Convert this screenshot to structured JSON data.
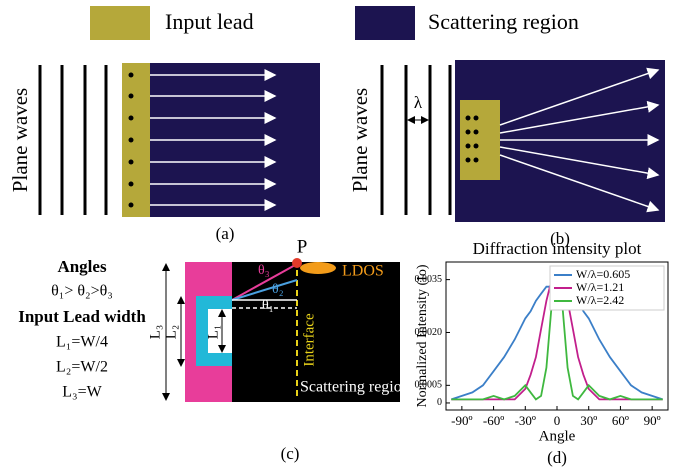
{
  "legend": {
    "input_lead": "Input lead",
    "scattering_region": "Scattering region"
  },
  "panel_a": {
    "label": "Plane waves",
    "caption": "(a)"
  },
  "panel_b": {
    "label": "Plane waves",
    "wavelength": "λ",
    "caption": "(b)"
  },
  "panel_c": {
    "angles_title": "Angles",
    "angles_relation": "θ₁> θ₂>θ₃",
    "width_title": "Input Lead width",
    "widths": [
      "L₁=W/4",
      "L₂=W/2",
      "L₃=W"
    ],
    "point": "P",
    "ldos": "LDOS",
    "angle_labels": [
      "θ₁",
      "θ₂",
      "θ₃"
    ],
    "length_labels": [
      "L₁",
      "L₂",
      "L₃"
    ],
    "interface": "Interface",
    "region": "Scattering region",
    "caption": "(c)"
  },
  "chart_data": {
    "type": "line",
    "title": "Diffraction intensity plot",
    "x_label": "Angle",
    "y_label": "Normalized Intensity (Io)",
    "caption": "(d)",
    "x": [
      -100,
      -90,
      -80,
      -70,
      -60,
      -50,
      -40,
      -30,
      -25,
      -20,
      -15,
      -10,
      -5,
      0,
      5,
      10,
      15,
      20,
      25,
      30,
      40,
      50,
      60,
      70,
      80,
      90,
      100
    ],
    "series": [
      {
        "name": "W/λ=0.605",
        "color": "#3b7fc8",
        "values": [
          0.0001,
          0.0002,
          0.0003,
          0.0005,
          0.0009,
          0.0013,
          0.0018,
          0.0024,
          0.0026,
          0.0029,
          0.0031,
          0.0033,
          0.0033,
          0.0033,
          0.0033,
          0.0033,
          0.0031,
          0.0029,
          0.0026,
          0.0024,
          0.0018,
          0.0013,
          0.0009,
          0.0005,
          0.0003,
          0.0002,
          0.0001
        ]
      },
      {
        "name": "W/λ=1.21",
        "color": "#c21f8c",
        "values": [
          0.0001,
          0.0001,
          0.0001,
          0.0001,
          0.0001,
          0.0001,
          0.0001,
          0.0004,
          0.0008,
          0.0013,
          0.0021,
          0.0029,
          0.0035,
          0.0037,
          0.0035,
          0.0029,
          0.0021,
          0.0013,
          0.0008,
          0.0004,
          0.0001,
          0.0001,
          0.0001,
          0.0001,
          0.0001,
          0.0001,
          0.0001
        ]
      },
      {
        "name": "W/λ=2.42",
        "color": "#3fb83f",
        "values": [
          0.0001,
          0.0001,
          0.0001,
          0.0001,
          0.0002,
          0.0001,
          0.0002,
          0.0005,
          0.0003,
          0.0001,
          0.0002,
          0.001,
          0.0028,
          0.0037,
          0.0028,
          0.001,
          0.0002,
          0.0001,
          0.0003,
          0.0005,
          0.0002,
          0.0001,
          0.0002,
          0.0001,
          0.0001,
          0.0001,
          0.0001
        ]
      }
    ],
    "xlim": [
      -105,
      105
    ],
    "ylim": [
      -0.0002,
      0.004
    ],
    "xticks": [
      {
        "value": -90,
        "label": "-90º"
      },
      {
        "value": -60,
        "label": "-60º"
      },
      {
        "value": -30,
        "label": "-30º"
      },
      0,
      {
        "value": 30,
        "label": "30º"
      },
      {
        "value": 60,
        "label": "60º"
      },
      {
        "value": 90,
        "label": "90º"
      }
    ],
    "yticks": [
      0,
      0.0005,
      {
        "value": 0.002,
        "label": "0.0020"
      },
      0.0035
    ],
    "legend_position": "upper right"
  }
}
